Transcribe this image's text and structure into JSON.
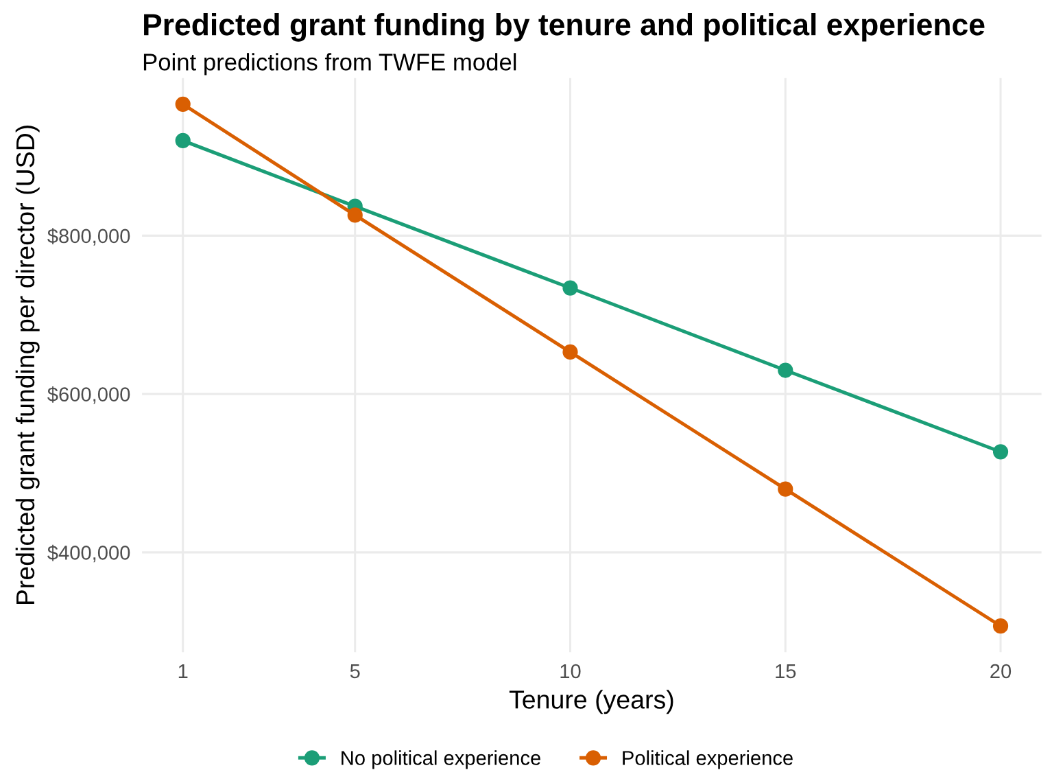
{
  "chart_data": {
    "type": "line",
    "title": "Predicted grant funding by tenure and political experience",
    "subtitle": "Point predictions from TWFE model",
    "xlabel": "Tenure (years)",
    "ylabel": "Predicted grant funding per director (USD)",
    "x": [
      1,
      5,
      10,
      15,
      20
    ],
    "series": [
      {
        "name": "No political experience",
        "color": "#1b9e77",
        "values": [
          920000,
          837000,
          734000,
          630000,
          527000
        ]
      },
      {
        "name": "Political experience",
        "color": "#d95f02",
        "values": [
          966000,
          826000,
          653000,
          480000,
          307000
        ]
      }
    ],
    "xlim": [
      0.05,
      20.95
    ],
    "xticks": [
      1,
      5,
      10,
      15,
      20
    ],
    "ylim": [
      274000,
      999000
    ],
    "yticks": [
      {
        "value": 400000,
        "label": "$400,000"
      },
      {
        "value": 600000,
        "label": "$600,000"
      },
      {
        "value": 800000,
        "label": "$800,000"
      }
    ],
    "grid": true,
    "legend": "bottom",
    "marker": "circle",
    "line_style": "solid"
  }
}
